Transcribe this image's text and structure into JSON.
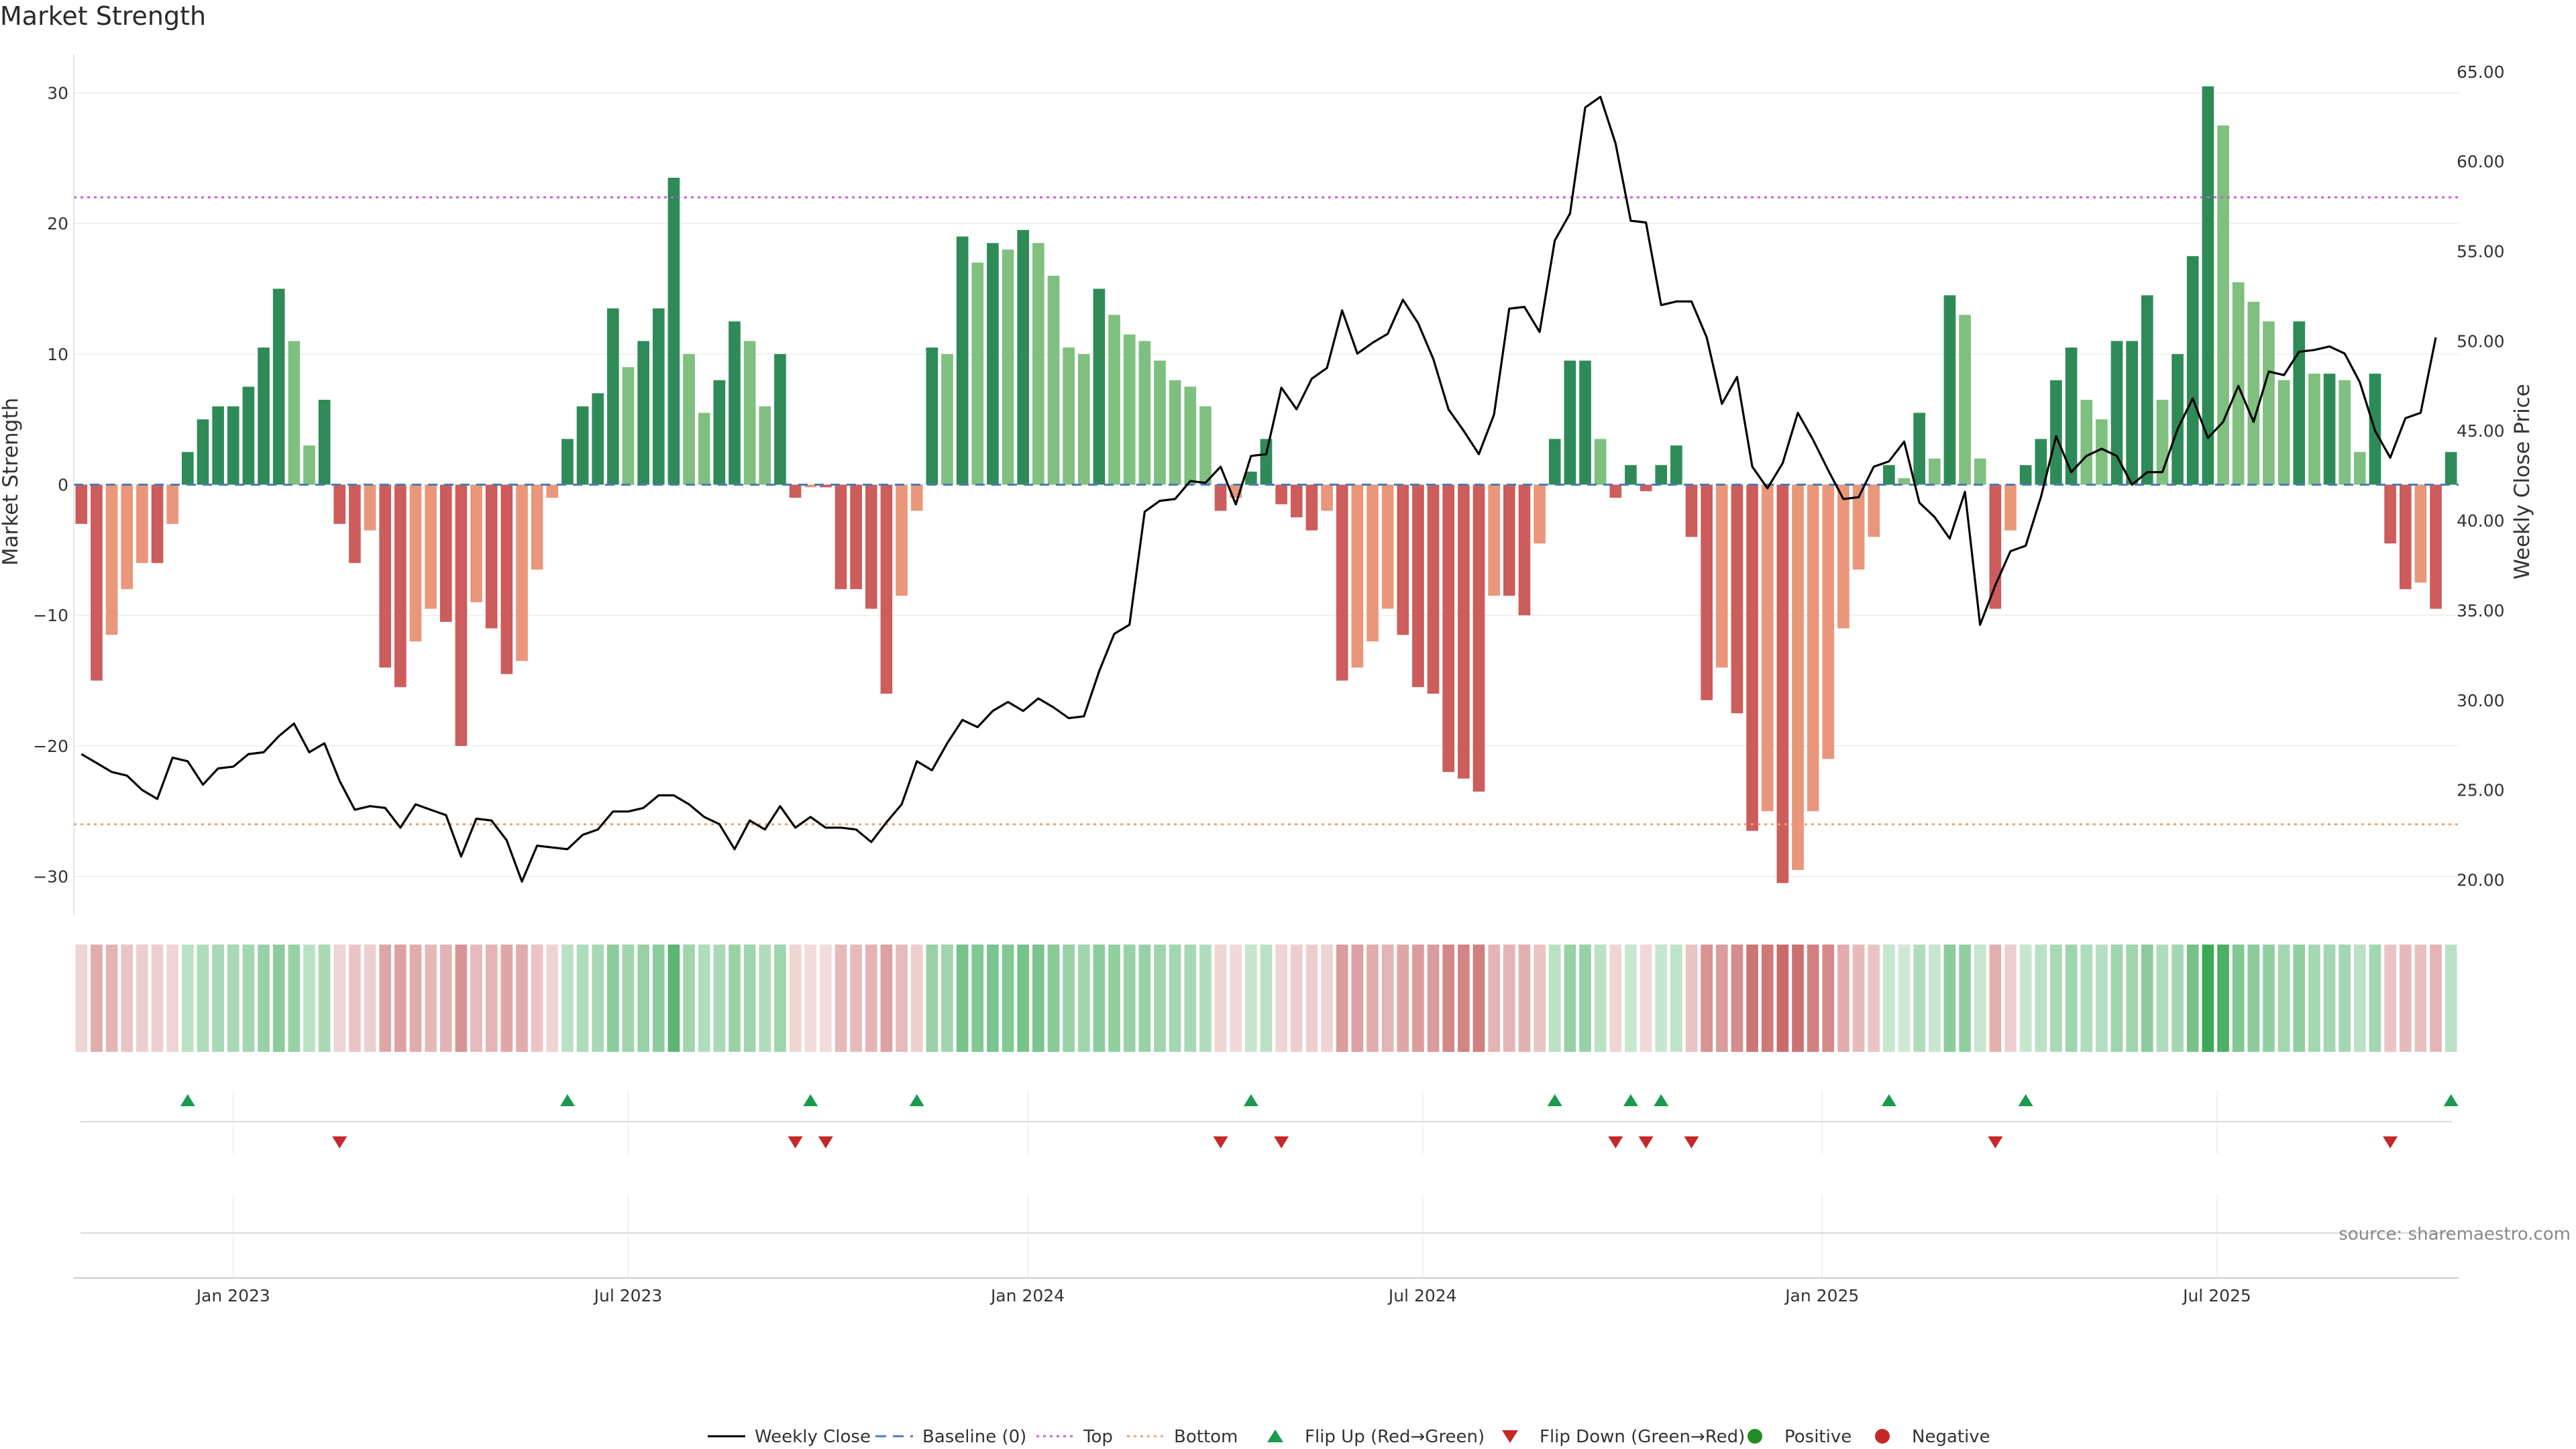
{
  "chart_data": {
    "type": "bar",
    "title": "Market Strength",
    "left_axis_label": "Market Strength",
    "right_axis_label": "Weekly Close Price",
    "left_ylim": [
      -33,
      33
    ],
    "right_ylim": [
      18,
      66
    ],
    "left_ticks": [
      30,
      20,
      10,
      0,
      -10,
      -20,
      -30
    ],
    "left_tick_labels": [
      "30",
      "20",
      "10",
      "0",
      "−10",
      "−20",
      "−30"
    ],
    "right_ticks": [
      65,
      60,
      55,
      50,
      45,
      40,
      35,
      30,
      25,
      20
    ],
    "right_tick_labels": [
      "65.00",
      "60.00",
      "55.00",
      "50.00",
      "45.00",
      "40.00",
      "35.00",
      "30.00",
      "25.00",
      "20.00"
    ],
    "x_ticks": [
      {
        "label": "Jan 2023",
        "week": 10.5
      },
      {
        "label": "Jul 2023",
        "week": 36.5
      },
      {
        "label": "Jan 2024",
        "week": 62.8
      },
      {
        "label": "Jul 2024",
        "week": 88.8
      },
      {
        "label": "Jan 2025",
        "week": 115.1
      },
      {
        "label": "Jul 2025",
        "week": 141.1
      }
    ],
    "top_line": 22,
    "bottom_line": -26,
    "strength": [
      -3,
      -15,
      -11.5,
      -8,
      -6,
      -6,
      -3,
      2.5,
      5,
      6,
      6,
      7.5,
      10.5,
      15,
      11,
      3,
      6.5,
      -3,
      -6,
      -3.5,
      -14,
      -15.5,
      -12,
      -9.5,
      -10.5,
      -20,
      -9,
      -11,
      -14.5,
      -13.5,
      -6.5,
      -1,
      3.5,
      6,
      7,
      13.5,
      9,
      11,
      13.5,
      23.5,
      10,
      5.5,
      8,
      12.5,
      11,
      6,
      10,
      -1,
      -0.2,
      -0.2,
      -8,
      -8,
      -9.5,
      -16,
      -8.5,
      -2,
      10.5,
      10,
      19,
      17,
      18.5,
      18,
      19.5,
      18.5,
      16,
      10.5,
      10,
      15,
      13,
      11.5,
      11,
      9.5,
      8,
      7.5,
      6,
      -2,
      -1,
      1,
      3.5,
      -1.5,
      -2.5,
      -3.5,
      -2,
      -15,
      -14,
      -12,
      -9.5,
      -11.5,
      -15.5,
      -16,
      -22,
      -22.5,
      -23.5,
      -8.5,
      -8.5,
      -10,
      -4.5,
      3.5,
      9.5,
      9.5,
      3.5,
      -1,
      1.5,
      -0.5,
      1.5,
      3,
      -4,
      -16.5,
      -14,
      -17.5,
      -26.5,
      -25,
      -30.5,
      -29.5,
      -25,
      -21,
      -11,
      -6.5,
      -4,
      1.5,
      0.5,
      5.5,
      2,
      14.5,
      13,
      2,
      -9.5,
      -3.5,
      1.5,
      3.5,
      8,
      10.5,
      6.5,
      5,
      11,
      11,
      14.5,
      6.5,
      10,
      17.5,
      30.5,
      27.5,
      15.5,
      14,
      12.5,
      8,
      12.5,
      8.5,
      8.5,
      8,
      2.5,
      8.5,
      -4.5,
      -8,
      -7.5,
      -9.5,
      2.5
    ],
    "weekly_close": [
      27,
      26.5,
      26,
      25.8,
      25,
      24.5,
      26.8,
      26.6,
      25.3,
      26.2,
      26.3,
      27,
      27.1,
      28,
      28.7,
      27.1,
      27.6,
      25.5,
      23.9,
      24.1,
      24,
      22.9,
      24.2,
      23.9,
      23.6,
      21.3,
      23.4,
      23.3,
      22.2,
      19.9,
      21.9,
      21.8,
      21.7,
      22.5,
      22.8,
      23.8,
      23.8,
      24,
      24.7,
      24.7,
      24.2,
      23.5,
      23.1,
      21.7,
      23.3,
      22.8,
      24.1,
      22.9,
      23.5,
      22.9,
      22.9,
      22.8,
      22.1,
      23.2,
      24.2,
      26.6,
      26.1,
      27.6,
      28.9,
      28.5,
      29.4,
      29.9,
      29.4,
      30.1,
      29.6,
      29,
      29.1,
      31.6,
      33.7,
      34.2,
      40.5,
      41.1,
      41.2,
      42.2,
      42.1,
      43,
      40.9,
      43.6,
      43.7,
      47.4,
      46.2,
      47.9,
      48.5,
      51.7,
      49.3,
      49.9,
      50.4,
      52.3,
      51,
      49,
      46.2,
      45,
      43.7,
      45.9,
      51.8,
      51.9,
      50.5,
      55.6,
      57.1,
      63,
      63.6,
      61,
      56.7,
      56.6,
      52,
      52.2,
      52.2,
      50.2,
      46.5,
      48,
      43,
      41.8,
      43.2,
      46,
      44.5,
      42.8,
      41.2,
      41.3,
      43,
      43.3,
      44.4,
      41,
      40.2,
      39,
      41.6,
      34.2,
      36.4,
      38.3,
      38.6,
      41.3,
      44.7,
      42.7,
      43.6,
      44,
      43.6,
      42,
      42.7,
      42.7,
      45.1,
      46.8,
      44.6,
      45.5,
      47.5,
      45.5,
      48.3,
      48.1,
      49.4,
      49.5,
      49.7,
      49.3,
      47.7,
      45,
      43.5,
      45.7,
      46,
      50.2
    ],
    "heat_alpha": [
      0.22,
      0.42,
      0.38,
      0.3,
      0.25,
      0.25,
      0.22,
      0.3,
      0.35,
      0.38,
      0.38,
      0.4,
      0.45,
      0.5,
      0.45,
      0.3,
      0.38,
      0.22,
      0.3,
      0.25,
      0.45,
      0.48,
      0.42,
      0.36,
      0.38,
      0.55,
      0.35,
      0.38,
      0.45,
      0.42,
      0.3,
      0.22,
      0.3,
      0.35,
      0.38,
      0.5,
      0.42,
      0.45,
      0.5,
      0.72,
      0.42,
      0.35,
      0.38,
      0.45,
      0.42,
      0.35,
      0.42,
      0.22,
      0.18,
      0.18,
      0.35,
      0.35,
      0.38,
      0.48,
      0.35,
      0.25,
      0.45,
      0.42,
      0.6,
      0.55,
      0.58,
      0.55,
      0.6,
      0.58,
      0.52,
      0.45,
      0.42,
      0.5,
      0.48,
      0.45,
      0.45,
      0.42,
      0.4,
      0.38,
      0.35,
      0.22,
      0.2,
      0.25,
      0.3,
      0.22,
      0.25,
      0.25,
      0.22,
      0.5,
      0.48,
      0.42,
      0.38,
      0.45,
      0.5,
      0.5,
      0.6,
      0.62,
      0.65,
      0.38,
      0.38,
      0.4,
      0.3,
      0.3,
      0.45,
      0.45,
      0.3,
      0.22,
      0.25,
      0.2,
      0.25,
      0.28,
      0.3,
      0.55,
      0.5,
      0.58,
      0.7,
      0.68,
      0.75,
      0.72,
      0.65,
      0.6,
      0.42,
      0.35,
      0.3,
      0.25,
      0.22,
      0.35,
      0.25,
      0.5,
      0.48,
      0.25,
      0.4,
      0.25,
      0.25,
      0.3,
      0.38,
      0.42,
      0.35,
      0.32,
      0.42,
      0.42,
      0.5,
      0.35,
      0.4,
      0.6,
      0.85,
      0.78,
      0.55,
      0.5,
      0.48,
      0.4,
      0.48,
      0.4,
      0.4,
      0.4,
      0.3,
      0.4,
      0.3,
      0.35,
      0.32,
      0.38,
      0.3
    ],
    "flip_up_weeks": [
      7,
      32,
      48,
      55,
      77,
      97,
      102,
      104,
      119,
      128,
      156
    ],
    "flip_down_weeks": [
      17,
      47,
      49,
      75,
      79,
      101,
      103,
      106,
      126,
      152
    ],
    "legend": [
      "Weekly Close",
      "Baseline (0)",
      "Top",
      "Bottom",
      "Flip Up (Red→Green)",
      "Flip Down (Green→Red)",
      "Positive",
      "Negative"
    ],
    "source": "source: sharemaestro.com"
  },
  "colors": {
    "green_strong": "#2e8b57",
    "green_light": "#7fbf7f",
    "red_strong": "#cd5c5c",
    "red_light": "#e9967a",
    "line": "#000000",
    "top_line": "#c061cb",
    "bottom_line": "#f0a060",
    "baseline": "#4a7ab8",
    "flip_up": "#1a9a50",
    "flip_down": "#c62828",
    "heat_green": "#1a9a3a",
    "heat_red": "#b83a3a"
  }
}
